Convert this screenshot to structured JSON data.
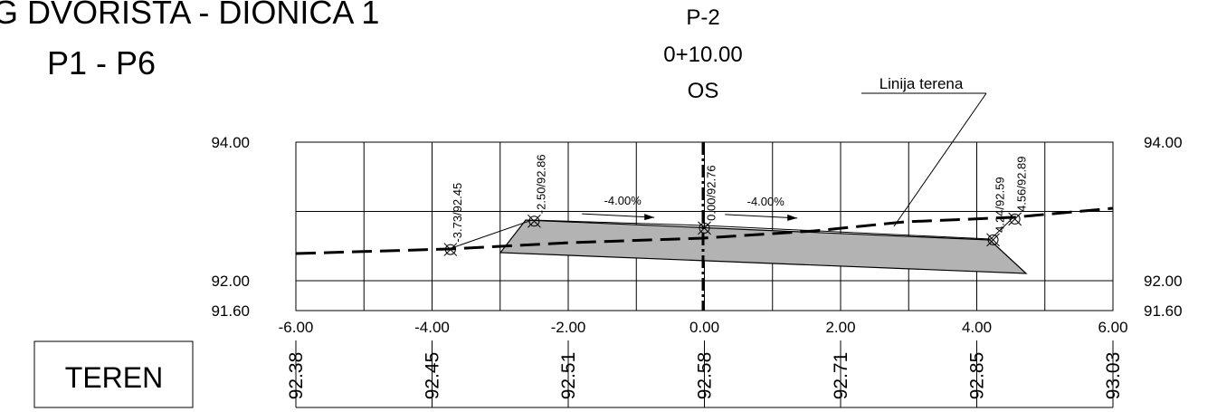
{
  "header": {
    "title_line1": "G DVORIŠTA - DIONICA 1",
    "title_line2": "P1 - P6",
    "profile_name": "P-2",
    "station": "0+10.00",
    "axis_label": "OS"
  },
  "terrain_label": "Linija terena",
  "legend_box": "TEREN",
  "colors": {
    "fill": "#b3b3b3",
    "line": "#000000"
  },
  "chart_data": {
    "type": "line",
    "x_ticks": [
      "-6.00",
      "-4.00",
      "-2.00",
      "0.00",
      "2.00",
      "4.00",
      "6.00"
    ],
    "y_labels_left": [
      "94.00",
      "92.00",
      "91.60"
    ],
    "y_labels_right": [
      "94.00",
      "92.00",
      "91.60"
    ],
    "xlim": [
      -6,
      6
    ],
    "ylim": [
      91.6,
      94.0
    ],
    "terrain_elevations": [
      {
        "x": -6,
        "value": "92.38"
      },
      {
        "x": -4,
        "value": "92.45"
      },
      {
        "x": -2,
        "value": "92.51"
      },
      {
        "x": 0,
        "value": "92.58"
      },
      {
        "x": 2,
        "value": "92.71"
      },
      {
        "x": 4,
        "value": "92.85"
      },
      {
        "x": 6,
        "value": "93.03"
      }
    ],
    "points": [
      {
        "x": -3.73,
        "y": 92.45,
        "label": "-3.73/92.45"
      },
      {
        "x": -2.5,
        "y": 92.86,
        "label": "-2.50/92.86"
      },
      {
        "x": 0.0,
        "y": 92.76,
        "label": "0.00/92.76"
      },
      {
        "x": 4.24,
        "y": 92.59,
        "label": "4.24/92.59"
      },
      {
        "x": 4.56,
        "y": 92.89,
        "label": "4.56/92.89"
      }
    ],
    "slopes": [
      {
        "label": "-4.00%",
        "x": -1.2,
        "y": 92.94
      },
      {
        "label": "-4.00%",
        "x": 0.9,
        "y": 92.93
      }
    ]
  }
}
